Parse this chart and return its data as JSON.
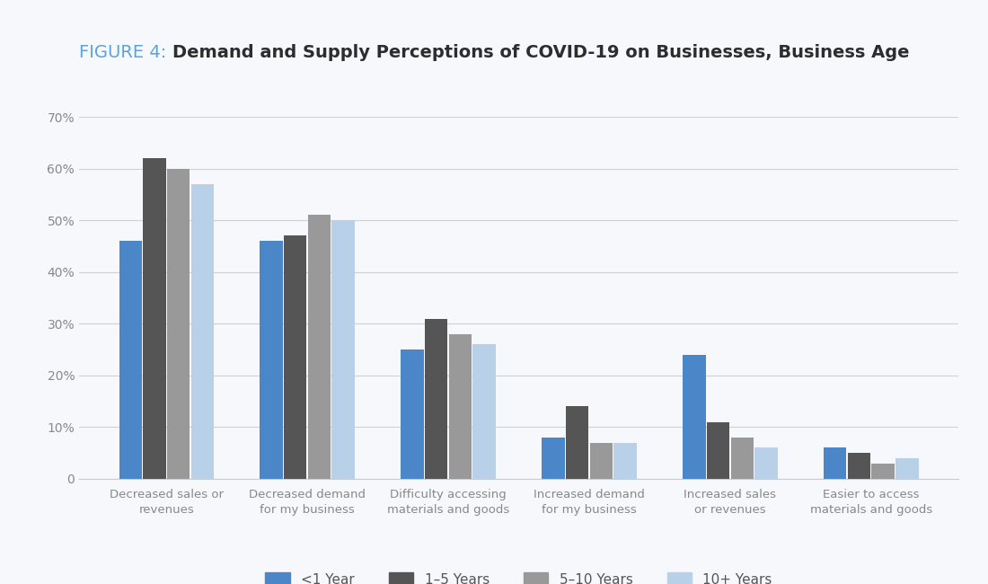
{
  "title_prefix": "FIGURE 4: ",
  "title_bold": "Demand and Supply Perceptions of COVID-19 on Businesses, Business Age",
  "categories": [
    "Decreased sales or\nrevenues",
    "Decreased demand\nfor my business",
    "Difficulty accessing\nmaterials and goods",
    "Increased demand\nfor my business",
    "Increased sales\nor revenues",
    "Easier to access\nmaterials and goods"
  ],
  "series": {
    "<1 Year": [
      46,
      46,
      25,
      8,
      24,
      6
    ],
    "1–5 Years": [
      62,
      47,
      31,
      14,
      11,
      5
    ],
    "5–10 Years": [
      60,
      51,
      28,
      7,
      8,
      3
    ],
    "10+ Years": [
      57,
      50,
      26,
      7,
      6,
      4
    ]
  },
  "colors": {
    "<1 Year": "#4a86c8",
    "1–5 Years": "#555555",
    "5–10 Years": "#999999",
    "10+ Years": "#b8d0e8"
  },
  "legend_order": [
    "<1 Year",
    "1–5 Years",
    "5–10 Years",
    "10+ Years"
  ],
  "ylim": [
    0,
    70
  ],
  "yticks": [
    0,
    10,
    20,
    30,
    40,
    50,
    60,
    70
  ],
  "ytick_labels": [
    "0",
    "10%",
    "20%",
    "30%",
    "40%",
    "50%",
    "60%",
    "70%"
  ],
  "background_color": "#f7f8fc",
  "grid_color": "#d0d0d8",
  "title_prefix_color": "#5ba3d9",
  "title_bold_color": "#2d2d2d",
  "bar_width": 0.17,
  "figsize": [
    11.0,
    6.5
  ],
  "dpi": 100
}
